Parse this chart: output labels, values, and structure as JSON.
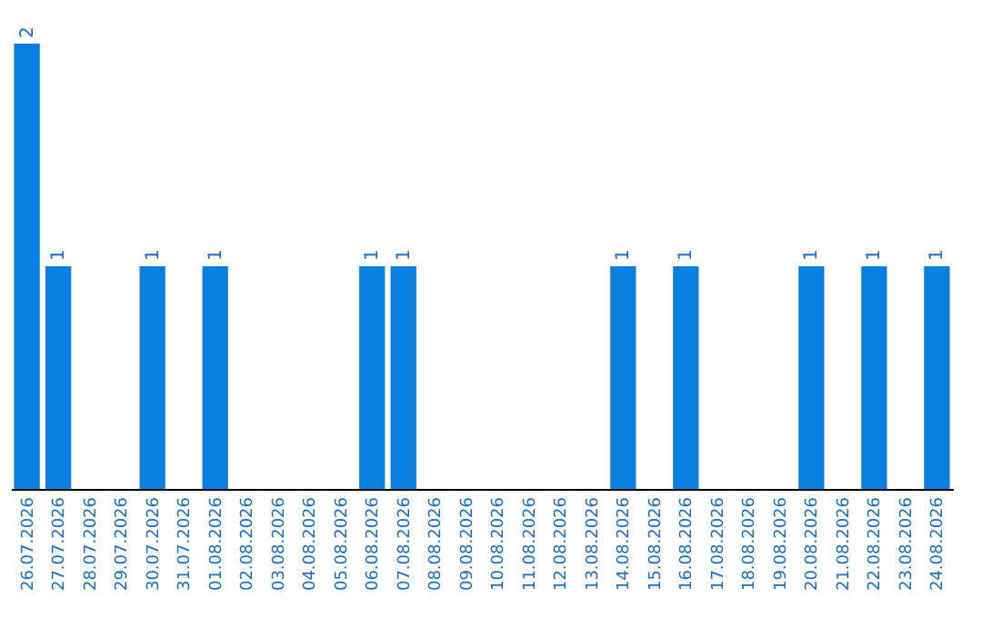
{
  "chart_data": {
    "type": "bar",
    "categories": [
      "26.07.2026",
      "27.07.2026",
      "28.07.2026",
      "29.07.2026",
      "30.07.2026",
      "31.07.2026",
      "01.08.2026",
      "02.08.2026",
      "03.08.2026",
      "04.08.2026",
      "05.08.2026",
      "06.08.2026",
      "07.08.2026",
      "08.08.2026",
      "09.08.2026",
      "10.08.2026",
      "11.08.2026",
      "12.08.2026",
      "13.08.2026",
      "14.08.2026",
      "15.08.2026",
      "16.08.2026",
      "17.08.2026",
      "18.08.2026",
      "19.08.2026",
      "20.08.2026",
      "21.08.2026",
      "22.08.2026",
      "23.08.2026",
      "24.08.2026"
    ],
    "values": [
      2,
      1,
      0,
      0,
      1,
      0,
      1,
      0,
      0,
      0,
      0,
      1,
      1,
      0,
      0,
      0,
      0,
      0,
      0,
      1,
      0,
      1,
      0,
      0,
      0,
      1,
      0,
      1,
      0,
      1
    ],
    "value_labels": [
      "2",
      "1",
      null,
      null,
      "1",
      null,
      "1",
      null,
      null,
      null,
      null,
      "1",
      "1",
      null,
      null,
      null,
      null,
      null,
      null,
      "1",
      null,
      "1",
      null,
      null,
      null,
      "1",
      null,
      "1",
      null,
      "1"
    ],
    "color": "#0a7fe0"
  }
}
